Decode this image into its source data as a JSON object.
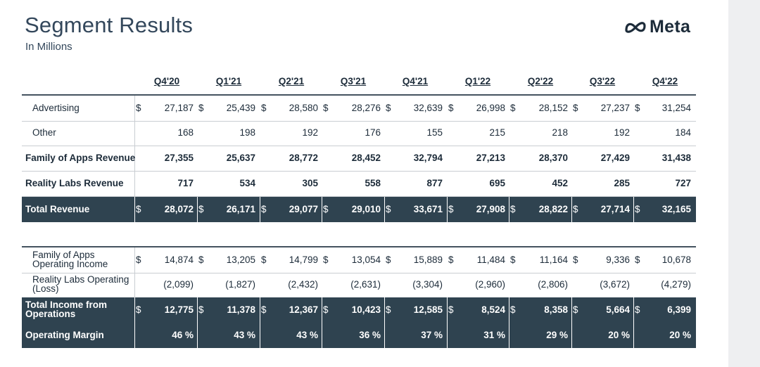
{
  "title": "Segment Results",
  "subtitle": "In Millions",
  "brand": {
    "name": "Meta",
    "icon": "meta-infinity-logo",
    "color": "#1c2b39"
  },
  "columns": [
    "Q4'20",
    "Q1'21",
    "Q2'21",
    "Q3'21",
    "Q4'21",
    "Q1'22",
    "Q2'22",
    "Q3'22",
    "Q4'22"
  ],
  "currency_symbol": "$",
  "table1": {
    "rows": [
      {
        "label": "Advertising",
        "dollar": true,
        "bold": false,
        "dark": false,
        "values": [
          "27,187",
          "25,439",
          "28,580",
          "28,276",
          "32,639",
          "26,998",
          "28,152",
          "27,237",
          "31,254"
        ]
      },
      {
        "label": "Other",
        "dollar": false,
        "bold": false,
        "dark": false,
        "values": [
          "168",
          "198",
          "192",
          "176",
          "155",
          "215",
          "218",
          "192",
          "184"
        ]
      },
      {
        "label": "Family of Apps Revenue",
        "dollar": false,
        "bold": true,
        "dark": false,
        "values": [
          "27,355",
          "25,637",
          "28,772",
          "28,452",
          "32,794",
          "27,213",
          "28,370",
          "27,429",
          "31,438"
        ]
      },
      {
        "label": "Reality Labs Revenue",
        "dollar": false,
        "bold": true,
        "dark": false,
        "values": [
          "717",
          "534",
          "305",
          "558",
          "877",
          "695",
          "452",
          "285",
          "727"
        ]
      },
      {
        "label": "Total Revenue",
        "dollar": true,
        "bold": true,
        "dark": true,
        "values": [
          "28,072",
          "26,171",
          "29,077",
          "29,010",
          "33,671",
          "27,908",
          "28,822",
          "27,714",
          "32,165"
        ]
      }
    ]
  },
  "table2": {
    "rows": [
      {
        "label": "Family of Apps Operating Income",
        "dollar": true,
        "bold": false,
        "dark": false,
        "values": [
          "14,874",
          "13,205",
          "14,799",
          "13,054",
          "15,889",
          "11,484",
          "11,164",
          "9,336",
          "10,678"
        ]
      },
      {
        "label": "Reality Labs Operating (Loss)",
        "dollar": false,
        "bold": false,
        "dark": false,
        "values": [
          "(2,099)",
          "(1,827)",
          "(2,432)",
          "(2,631)",
          "(3,304)",
          "(2,960)",
          "(2,806)",
          "(3,672)",
          "(4,279)"
        ]
      },
      {
        "label": "Total Income from Operations",
        "dollar": true,
        "bold": true,
        "dark": true,
        "values": [
          "12,775",
          "11,378",
          "12,367",
          "10,423",
          "12,585",
          "8,524",
          "8,358",
          "5,664",
          "6,399"
        ]
      },
      {
        "label": "Operating Margin",
        "dollar": false,
        "bold": true,
        "dark": true,
        "values": [
          "46 %",
          "43 %",
          "43 %",
          "36 %",
          "37 %",
          "31 %",
          "29 %",
          "20 %",
          "20 %"
        ]
      }
    ]
  },
  "colors": {
    "dark_row": "#2f4350",
    "title": "#33475b",
    "text": "#1c2b39"
  }
}
